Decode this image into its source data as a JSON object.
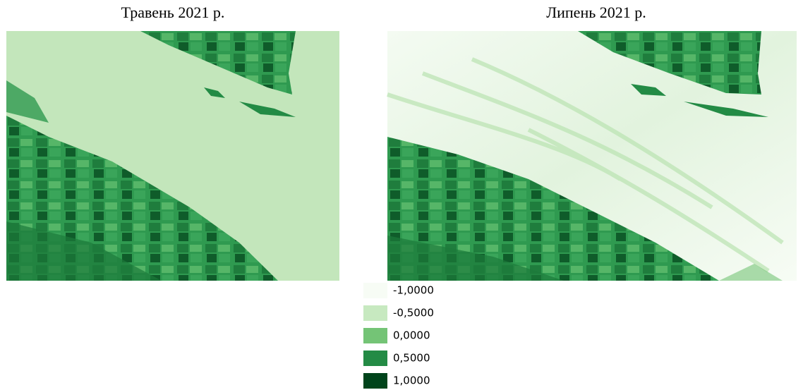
{
  "panels": [
    {
      "title": "Травень 2021 р."
    },
    {
      "title": "Липень 2021 р."
    }
  ],
  "legend": [
    {
      "label": "-1,0000",
      "color": "#f7fcf5"
    },
    {
      "label": "-0,5000",
      "color": "#c7e9c0"
    },
    {
      "label": "0,0000",
      "color": "#74c476"
    },
    {
      "label": "0,5000",
      "color": "#238b45"
    },
    {
      "label": "1,0000",
      "color": "#00441b"
    }
  ]
}
